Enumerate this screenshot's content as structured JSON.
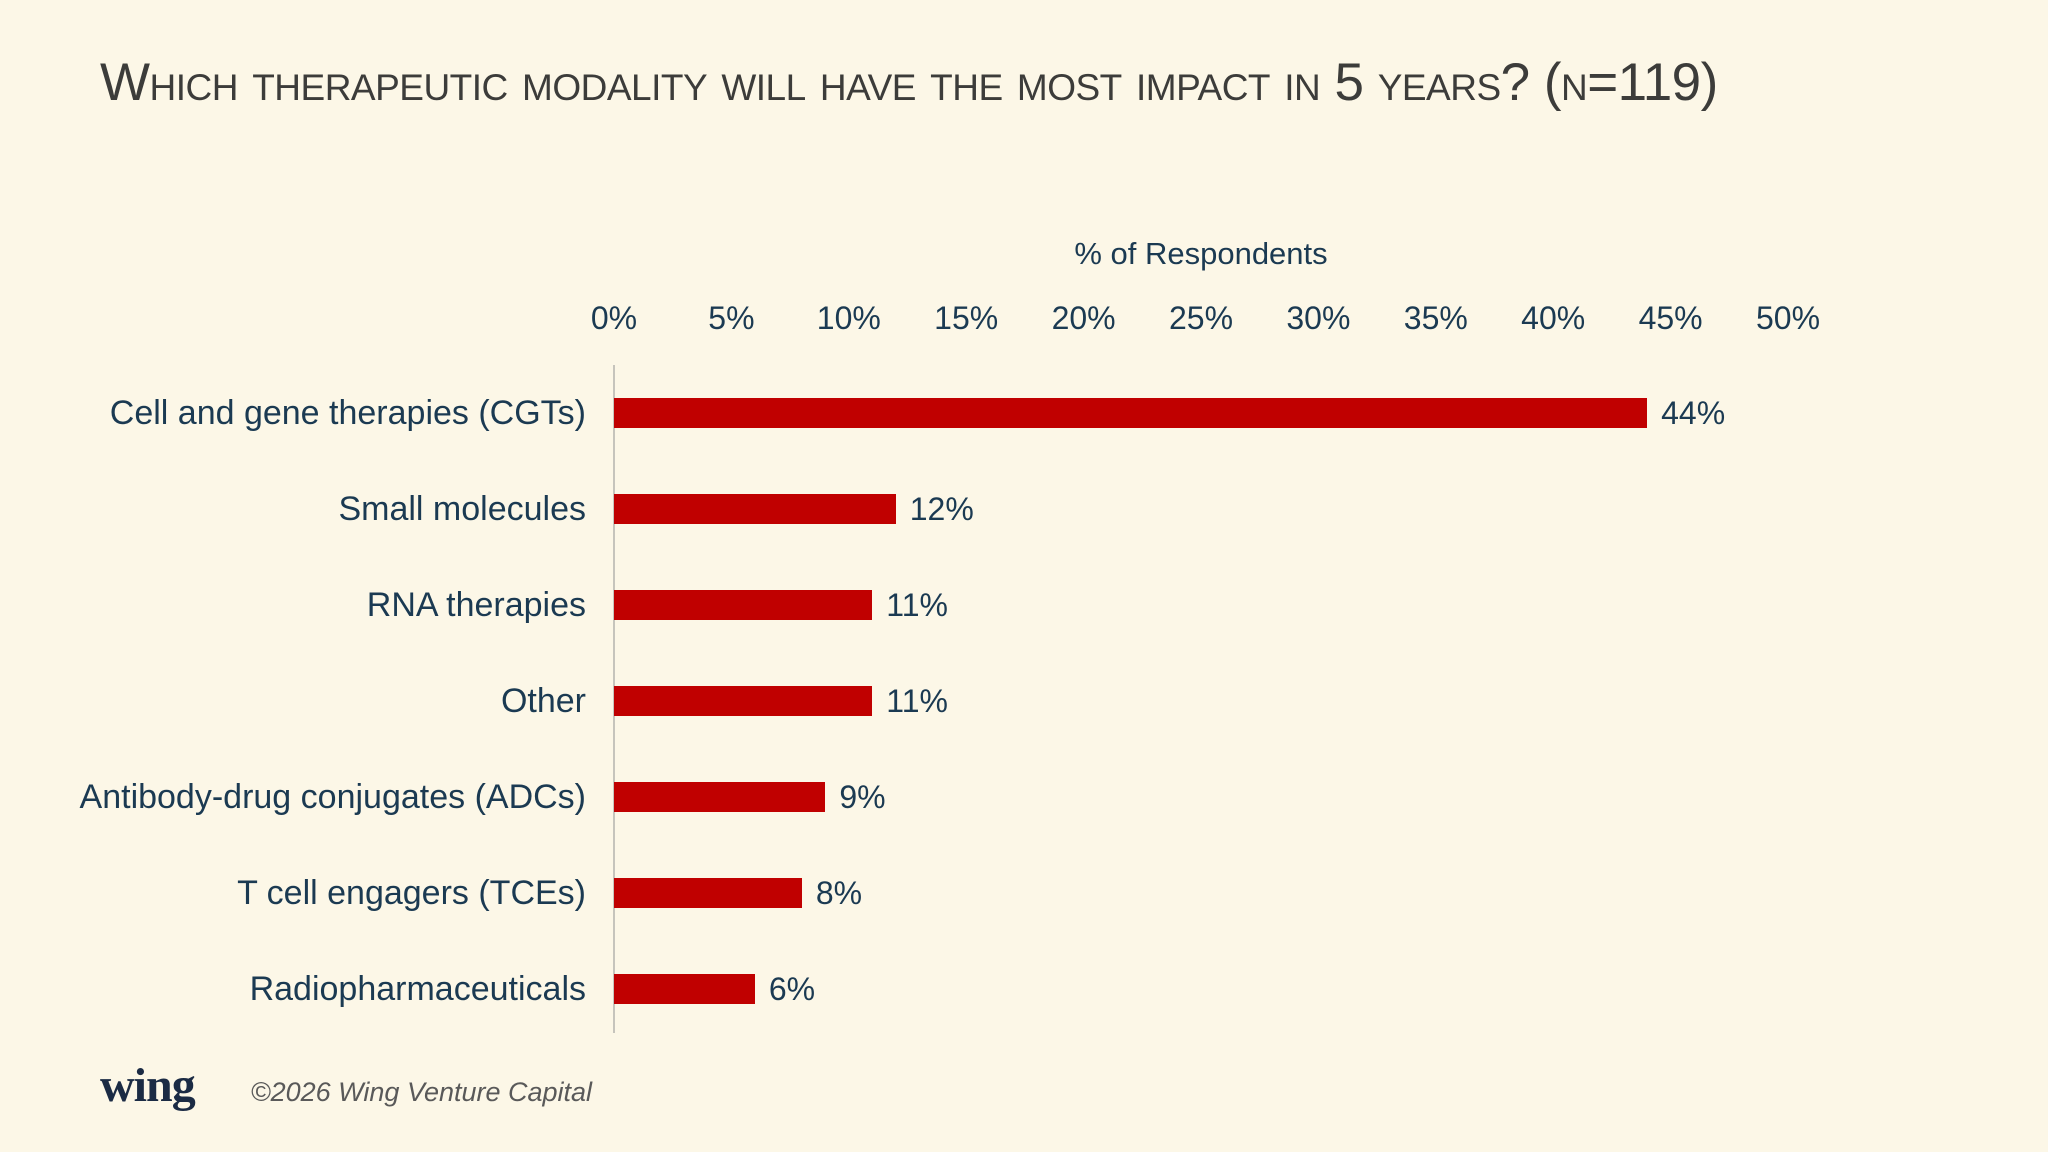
{
  "page": {
    "background_color": "#FCF7E7"
  },
  "header": {
    "title": "Which therapeutic modality will have the most impact in 5 years? (n=119)"
  },
  "chart_data": {
    "type": "bar",
    "orientation": "horizontal",
    "title": "Which therapeutic modality will have the most impact in 5 years? (n=119)",
    "xlabel": "% of Respondents",
    "ylabel": "",
    "categories": [
      "Cell and gene therapies (CGTs)",
      "Small molecules",
      "RNA therapies",
      "Other",
      "Antibody-drug conjugates (ADCs)",
      "T cell engagers (TCEs)",
      "Radiopharmaceuticals"
    ],
    "values": [
      44,
      12,
      11,
      11,
      9,
      8,
      6
    ],
    "data_labels": [
      "44%",
      "12%",
      "11%",
      "11%",
      "9%",
      "8%",
      "6%"
    ],
    "xlim": [
      0,
      50
    ],
    "xticks": [
      "0%",
      "5%",
      "10%",
      "15%",
      "20%",
      "25%",
      "30%",
      "35%",
      "40%",
      "45%",
      "50%"
    ],
    "grid": false,
    "legend": false,
    "bar_color": "#C00000",
    "text_color": "#1B3A52",
    "title_color": "#3C3C3A"
  },
  "footer": {
    "logo": "wing",
    "copyright": "©2026 Wing Venture Capital"
  }
}
